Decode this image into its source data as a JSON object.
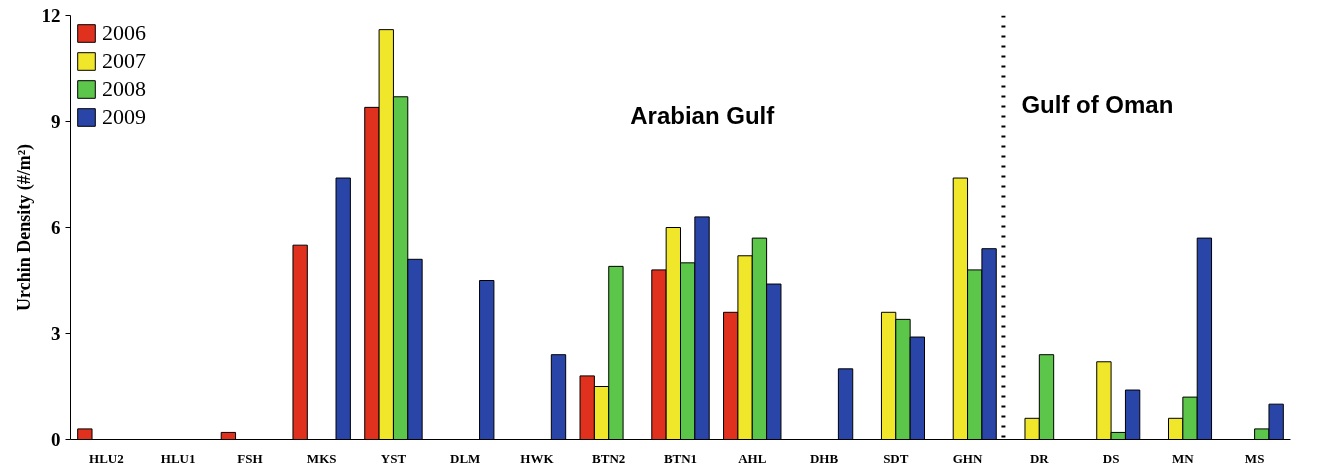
{
  "chart_data": {
    "type": "bar",
    "categories": [
      "HLU2",
      "HLU1",
      "FSH",
      "MKS",
      "YST",
      "DLM",
      "HWK",
      "BTN2",
      "BTN1",
      "AHL",
      "DHB",
      "SDT",
      "GHN",
      "DR",
      "DS",
      "MN",
      "MS"
    ],
    "series": [
      {
        "name": "2006",
        "color": "#e0301e",
        "values": [
          0.3,
          null,
          0.2,
          5.5,
          9.4,
          null,
          null,
          1.8,
          4.8,
          3.6,
          null,
          null,
          null,
          null,
          null,
          null,
          null
        ]
      },
      {
        "name": "2007",
        "color": "#f0e62a",
        "values": [
          null,
          null,
          null,
          null,
          11.6,
          null,
          null,
          1.5,
          6.0,
          5.2,
          null,
          3.6,
          7.4,
          0.6,
          2.2,
          0.6,
          null
        ]
      },
      {
        "name": "2008",
        "color": "#5cc64a",
        "values": [
          null,
          null,
          null,
          null,
          9.7,
          null,
          null,
          4.9,
          5.0,
          5.7,
          null,
          3.4,
          4.8,
          2.4,
          0.2,
          1.2,
          0.3
        ]
      },
      {
        "name": "2009",
        "color": "#2a45a8",
        "values": [
          null,
          null,
          null,
          7.4,
          5.1,
          4.5,
          2.4,
          null,
          6.3,
          4.4,
          2.0,
          2.9,
          5.4,
          null,
          1.4,
          5.7,
          1.0
        ]
      }
    ],
    "ylabel": "Urchin Density (#/m²)",
    "ylim": [
      0,
      12
    ],
    "yticks": [
      0,
      3,
      6,
      9,
      12
    ],
    "annotations": [
      "Arabian Gulf",
      "Gulf of Oman"
    ],
    "legend": "top left",
    "grid": false
  }
}
